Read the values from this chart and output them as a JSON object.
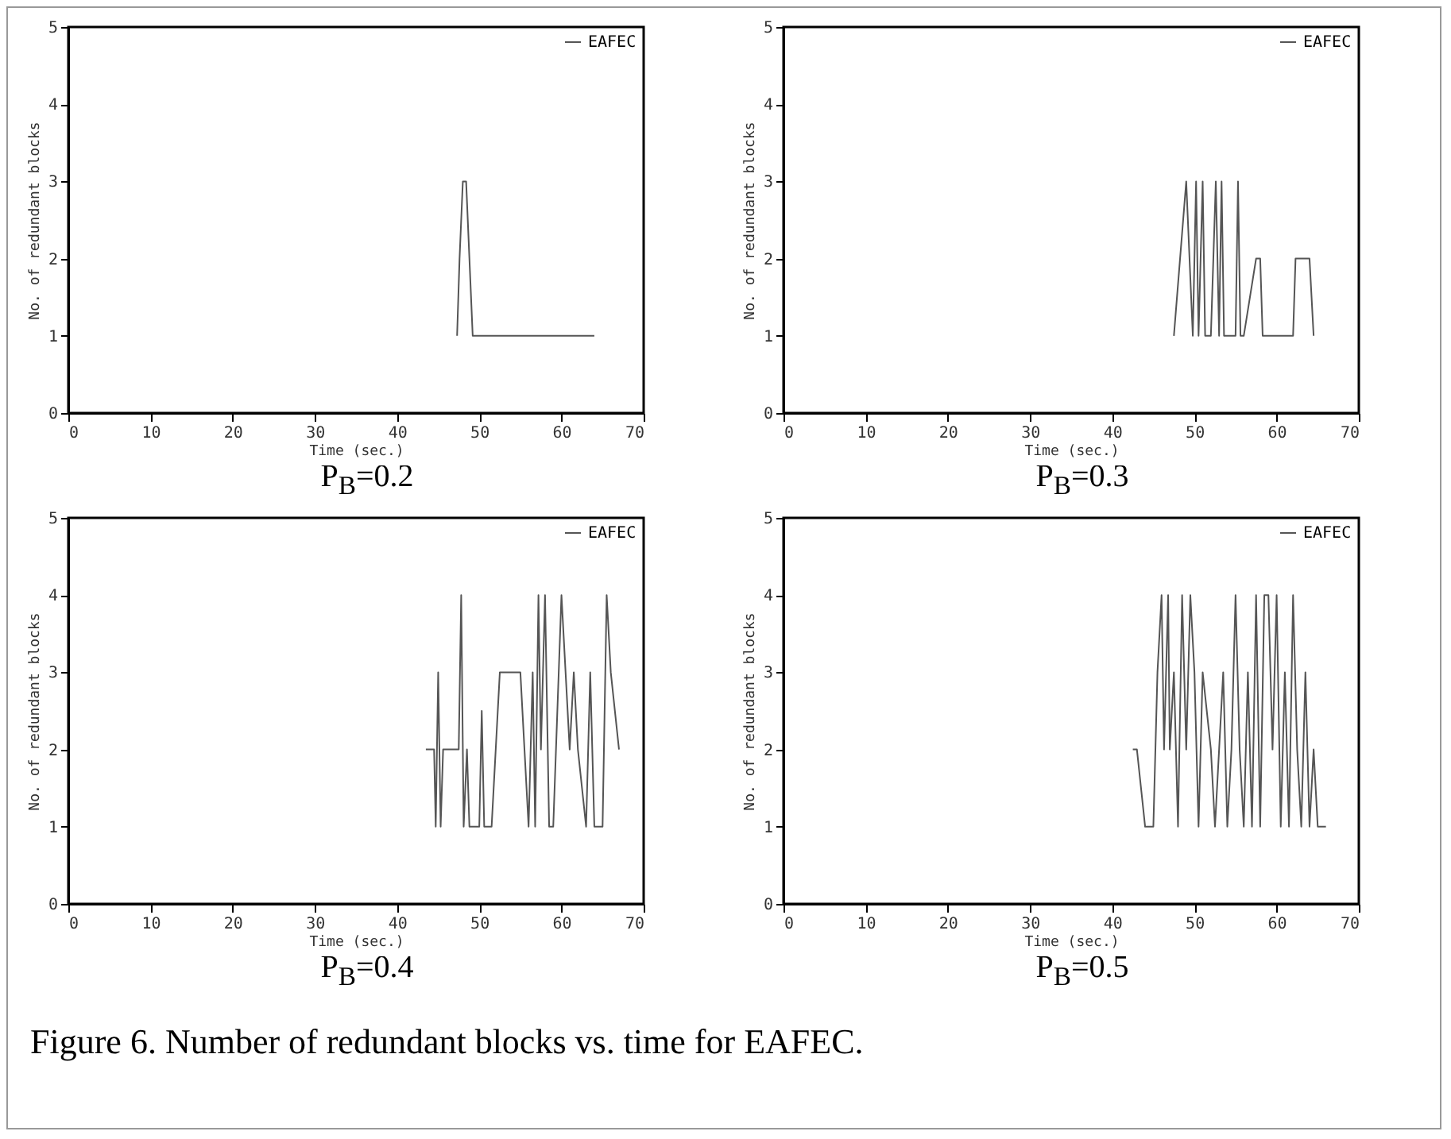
{
  "chart_data": [
    {
      "type": "line",
      "title": "P$_{B}$=0.2",
      "xlabel": "Time (sec.)",
      "ylabel": "No. of redundant blocks",
      "xlim": [
        0,
        70
      ],
      "ylim": [
        0,
        5
      ],
      "xticks": [
        0,
        10,
        20,
        30,
        40,
        50,
        60,
        70
      ],
      "yticks": [
        0,
        1,
        2,
        3,
        4,
        5
      ],
      "legend": "top right",
      "series": [
        {
          "name": "EAFEC",
          "color": "#555555",
          "x": [
            47.3,
            47.6,
            48.0,
            48.4,
            48.8,
            49.2,
            64
          ],
          "values": [
            1,
            2,
            3,
            3,
            2,
            1,
            1
          ]
        }
      ]
    },
    {
      "type": "line",
      "title": "P$_{B}$=0.3",
      "xlabel": "Time (sec.)",
      "ylabel": "No. of redundant blocks",
      "xlim": [
        0,
        70
      ],
      "ylim": [
        0,
        5
      ],
      "xticks": [
        0,
        10,
        20,
        30,
        40,
        50,
        60,
        70
      ],
      "yticks": [
        0,
        1,
        2,
        3,
        4,
        5
      ],
      "legend": "top right",
      "series": [
        {
          "name": "EAFEC",
          "color": "#555555",
          "x": [
            47.5,
            49,
            49.8,
            50.2,
            50.5,
            51,
            51.3,
            52,
            52.3,
            52.6,
            53,
            53.3,
            53.6,
            55,
            55.3,
            55.6,
            56,
            57.5,
            58,
            58.3,
            62,
            62.3,
            64,
            64.5
          ],
          "values": [
            1,
            3,
            1,
            3,
            1,
            3,
            1,
            1,
            2,
            3,
            1,
            3,
            1,
            1,
            3,
            1,
            1,
            2,
            2,
            1,
            1,
            2,
            2,
            1
          ]
        }
      ]
    },
    {
      "type": "line",
      "title": "P$_{B}$=0.4",
      "xlabel": "Time (sec.)",
      "ylabel": "No. of redundant blocks",
      "xlim": [
        0,
        70
      ],
      "ylim": [
        0,
        5
      ],
      "xticks": [
        0,
        10,
        20,
        30,
        40,
        50,
        60,
        70
      ],
      "yticks": [
        0,
        1,
        2,
        3,
        4,
        5
      ],
      "legend": "top right",
      "series": [
        {
          "name": "EAFEC",
          "color": "#555555",
          "x": [
            43.5,
            44.5,
            44.7,
            45,
            45.3,
            45.6,
            47.5,
            47.8,
            48.1,
            48.5,
            48.8,
            50,
            50.3,
            50.6,
            51.5,
            52,
            52.5,
            55,
            55.5,
            56,
            56.5,
            56.8,
            57.2,
            57.5,
            58,
            58.5,
            59,
            60,
            61,
            61.5,
            62,
            63,
            63.5,
            64,
            65,
            65.5,
            66,
            67
          ],
          "values": [
            2,
            2,
            1,
            3,
            1,
            2,
            2,
            4,
            1,
            2,
            1,
            1,
            2.5,
            1,
            1,
            2,
            3,
            3,
            2,
            1,
            3,
            1,
            4,
            2,
            4,
            1,
            1,
            4,
            2,
            3,
            2,
            1,
            3,
            1,
            1,
            4,
            3,
            2
          ]
        }
      ]
    },
    {
      "type": "line",
      "title": "P$_{B}$=0.5",
      "xlabel": "Time (sec.)",
      "ylabel": "No. of redundant blocks",
      "xlim": [
        0,
        70
      ],
      "ylim": [
        0,
        5
      ],
      "xticks": [
        0,
        10,
        20,
        30,
        40,
        50,
        60,
        70
      ],
      "yticks": [
        0,
        1,
        2,
        3,
        4,
        5
      ],
      "legend": "top right",
      "annotations": [
        "Figure 6. Number of redundant blocks vs. time for EAFEC."
      ],
      "series": [
        {
          "name": "EAFEC",
          "color": "#555555",
          "x": [
            42.5,
            43,
            44,
            45,
            45.5,
            46,
            46.3,
            46.8,
            47,
            47.5,
            48,
            48.5,
            49,
            49.5,
            50,
            50.5,
            51,
            52,
            52.5,
            53,
            53.5,
            54,
            54.5,
            55,
            55.5,
            56,
            56.5,
            57,
            57.5,
            58,
            58.5,
            59,
            59.5,
            60,
            60.5,
            61,
            61.5,
            62,
            62.5,
            63,
            63.5,
            64,
            64.5,
            65,
            66
          ],
          "values": [
            2,
            2,
            1,
            1,
            3,
            4,
            2,
            4,
            2,
            3,
            1,
            4,
            2,
            4,
            3,
            1,
            3,
            2,
            1,
            2,
            3,
            1,
            2,
            4,
            2,
            1,
            3,
            1,
            4,
            1,
            4,
            4,
            2,
            4,
            1,
            3,
            1,
            4,
            2,
            1,
            3,
            1,
            2,
            1,
            1
          ]
        }
      ]
    }
  ]
}
